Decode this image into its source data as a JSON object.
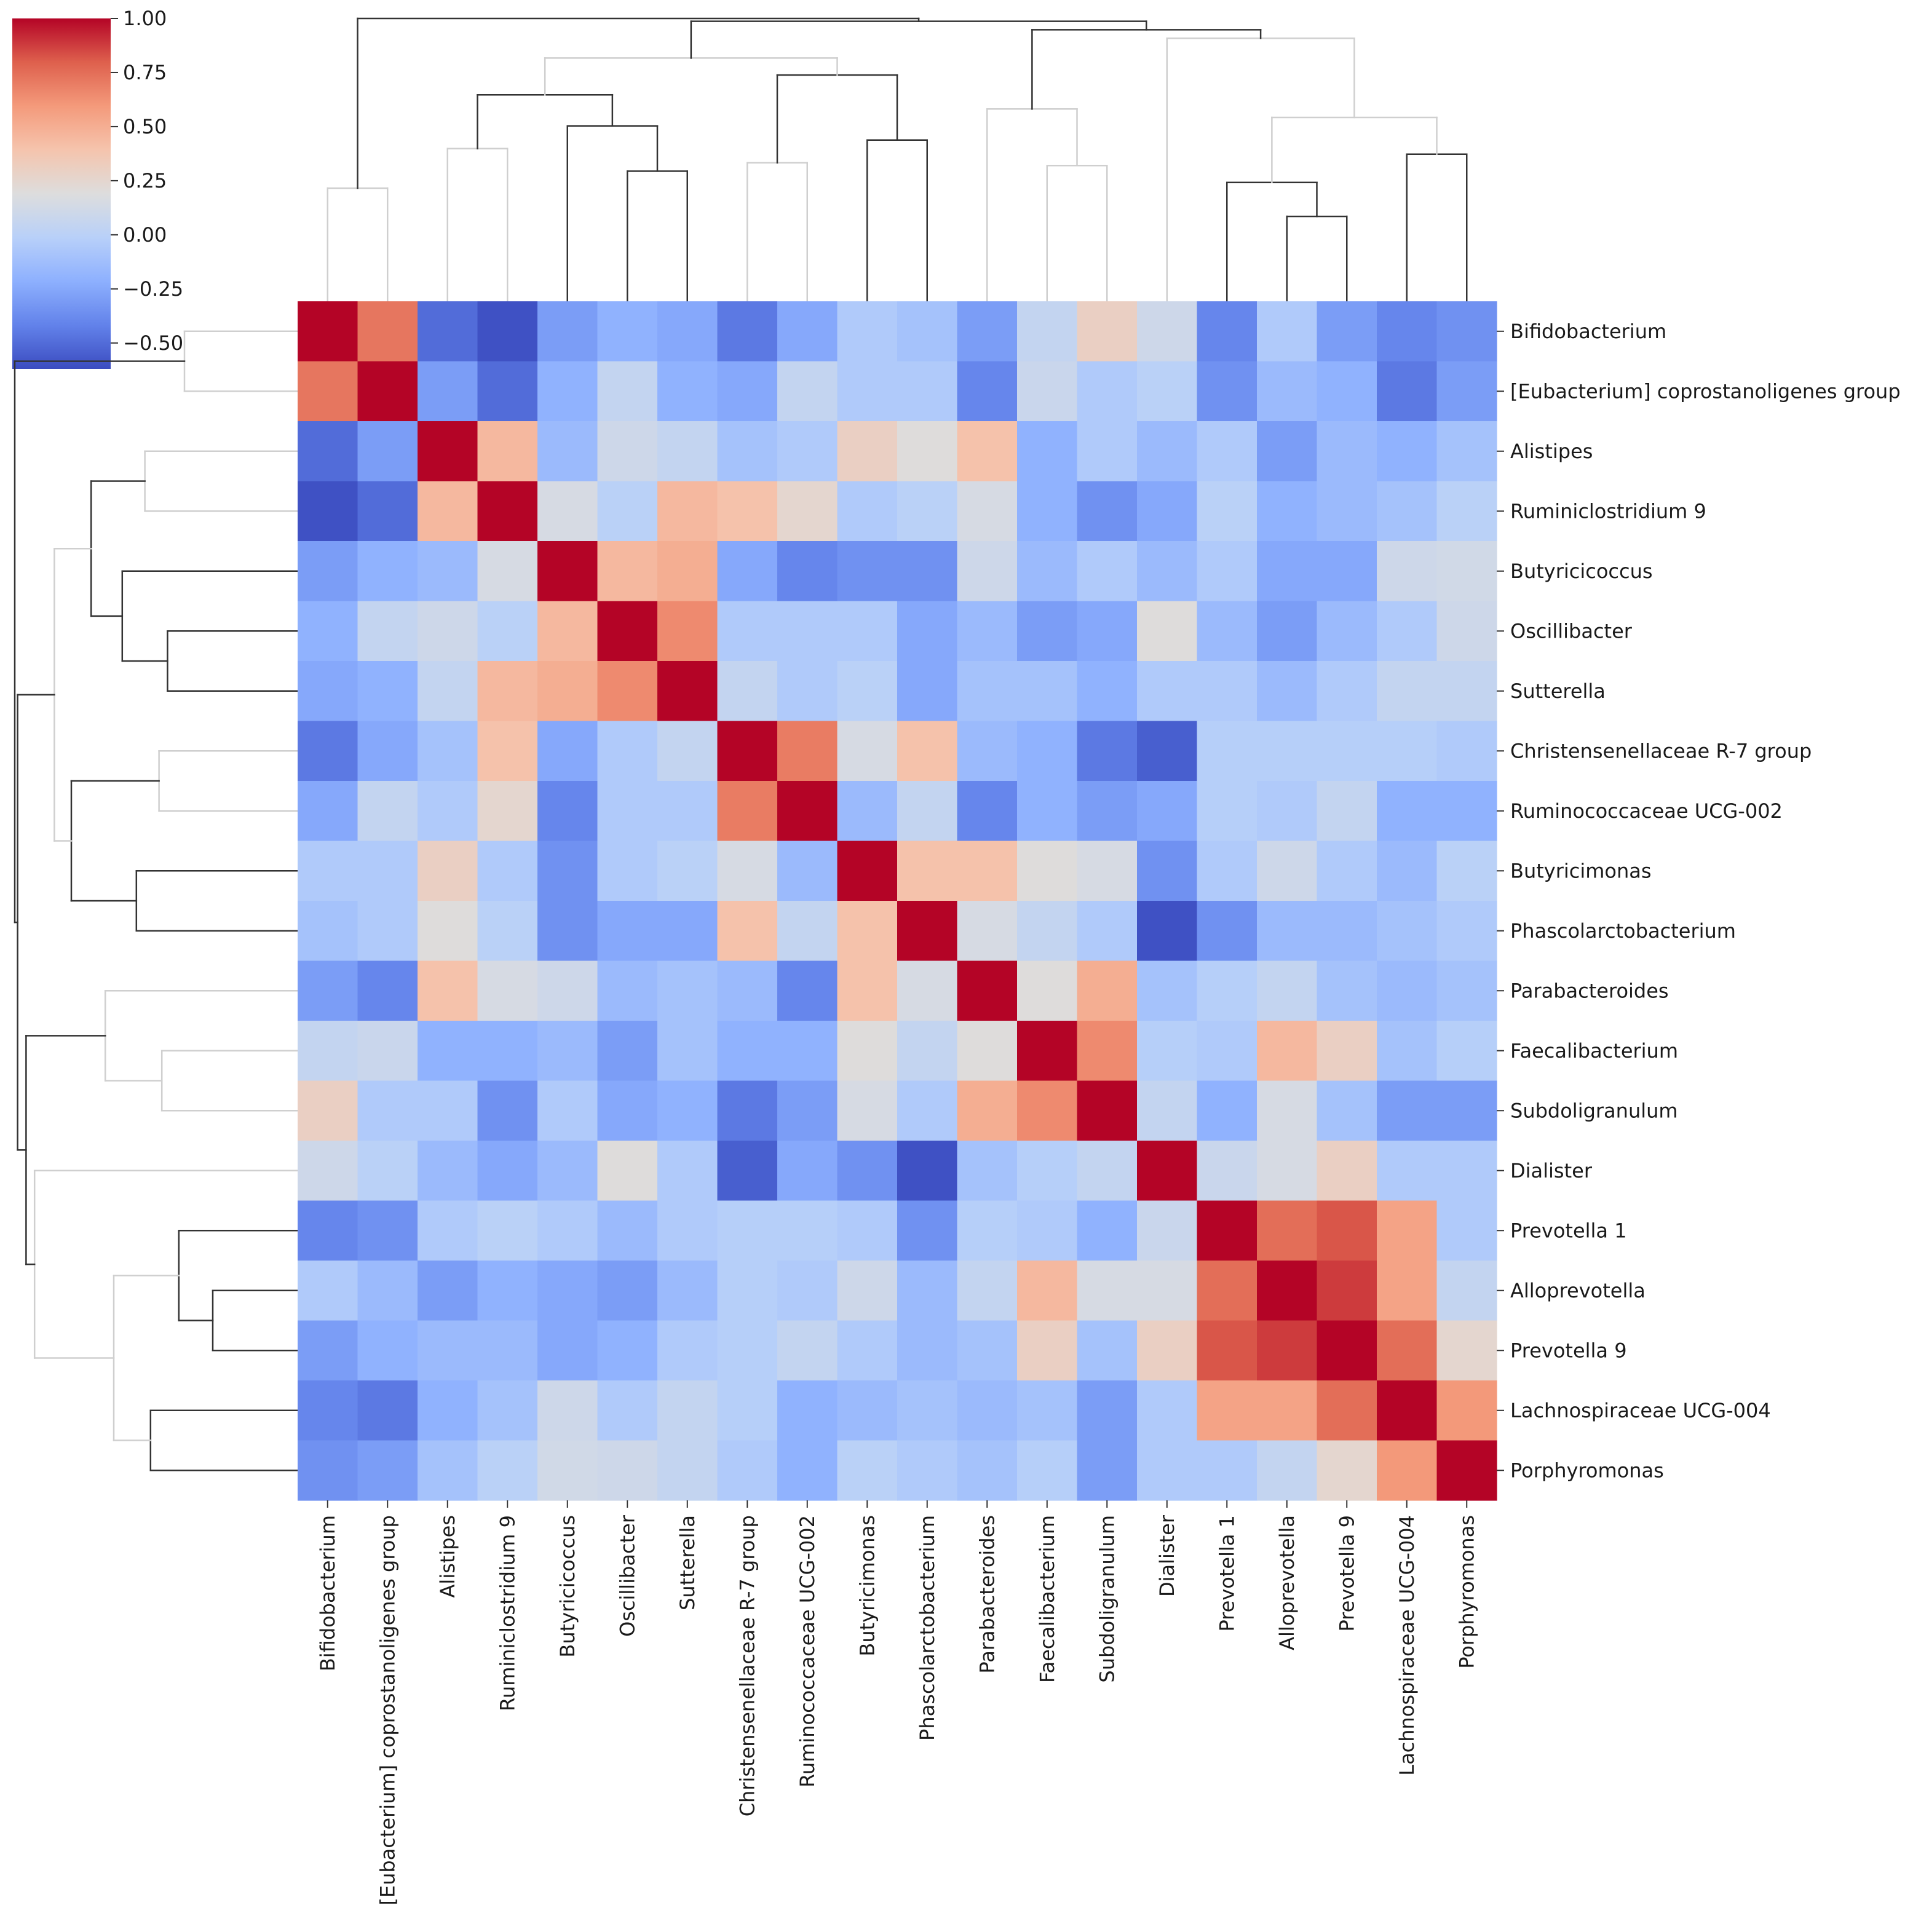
{
  "chart_data": {
    "type": "heatmap",
    "subtype": "clustermap",
    "title": "",
    "xlabel": "",
    "ylabel": "",
    "colormap": "coolwarm",
    "vmin": -0.62,
    "vmax": 1.0,
    "colors": {
      "low": "#3b4cc0",
      "mid": "#dddddd",
      "high": "#b40426"
    },
    "colorbar": {
      "ticks": [
        1.0,
        0.75,
        0.5,
        0.25,
        0.0,
        -0.25,
        -0.5
      ],
      "tick_labels": [
        "1.00",
        "0.75",
        "0.50",
        "0.25",
        "0.00",
        "−0.25",
        "−0.50"
      ]
    },
    "labels": [
      "Bifidobacterium",
      "[Eubacterium] coprostanoligenes group",
      "Alistipes",
      "Ruminiclostridium 9",
      "Butyricicoccus",
      "Oscillibacter",
      "Sutterella",
      "Christensenellaceae R-7 group",
      "Ruminococcaceae UCG-002",
      "Butyricimonas",
      "Phascolarctobacterium",
      "Parabacteroides",
      "Faecalibacterium",
      "Subdoligranulum",
      "Dialister",
      "Prevotella 1",
      "Alloprevotella",
      "Prevotella 9",
      "Lachnospiraceae UCG-004",
      "Porphyromonas"
    ],
    "matrix": [
      [
        1.0,
        0.72,
        -0.5,
        -0.6,
        -0.3,
        -0.2,
        -0.25,
        -0.45,
        -0.25,
        -0.05,
        -0.1,
        -0.3,
        0.05,
        0.3,
        0.1,
        -0.4,
        -0.05,
        -0.3,
        -0.4,
        -0.35
      ],
      [
        0.72,
        1.0,
        -0.3,
        -0.5,
        -0.2,
        0.05,
        -0.2,
        -0.25,
        0.05,
        -0.05,
        -0.05,
        -0.4,
        0.08,
        -0.05,
        0.0,
        -0.35,
        -0.15,
        -0.2,
        -0.45,
        -0.3
      ],
      [
        -0.5,
        -0.3,
        1.0,
        0.45,
        -0.15,
        0.1,
        0.05,
        -0.1,
        -0.05,
        0.3,
        0.2,
        0.4,
        -0.2,
        -0.05,
        -0.15,
        -0.05,
        -0.3,
        -0.15,
        -0.2,
        -0.1
      ],
      [
        -0.6,
        -0.5,
        0.45,
        1.0,
        0.15,
        0.0,
        0.45,
        0.4,
        0.25,
        -0.05,
        0.0,
        0.15,
        -0.2,
        -0.35,
        -0.25,
        0.0,
        -0.2,
        -0.15,
        -0.1,
        0.0
      ],
      [
        -0.3,
        -0.2,
        -0.15,
        0.15,
        1.0,
        0.45,
        0.5,
        -0.25,
        -0.4,
        -0.35,
        -0.35,
        0.1,
        -0.15,
        -0.05,
        -0.15,
        -0.05,
        -0.25,
        -0.25,
        0.1,
        0.12
      ],
      [
        -0.2,
        0.05,
        0.1,
        0.0,
        0.45,
        1.0,
        0.65,
        -0.05,
        -0.05,
        -0.05,
        -0.25,
        -0.15,
        -0.3,
        -0.25,
        0.2,
        -0.15,
        -0.3,
        -0.15,
        -0.05,
        0.1
      ],
      [
        -0.25,
        -0.2,
        0.05,
        0.45,
        0.5,
        0.65,
        1.0,
        0.05,
        -0.05,
        0.0,
        -0.25,
        -0.1,
        -0.1,
        -0.2,
        -0.05,
        -0.05,
        -0.15,
        -0.05,
        0.05,
        0.05
      ],
      [
        -0.45,
        -0.25,
        -0.1,
        0.4,
        -0.25,
        -0.05,
        0.05,
        1.0,
        0.7,
        0.15,
        0.4,
        -0.15,
        -0.2,
        -0.45,
        -0.55,
        -0.02,
        -0.02,
        -0.02,
        -0.02,
        -0.05
      ],
      [
        -0.25,
        0.05,
        -0.05,
        0.25,
        -0.4,
        -0.05,
        -0.05,
        0.7,
        1.0,
        -0.15,
        0.05,
        -0.4,
        -0.2,
        -0.3,
        -0.25,
        -0.02,
        -0.05,
        0.05,
        -0.2,
        -0.2
      ],
      [
        -0.05,
        -0.05,
        0.3,
        -0.05,
        -0.35,
        -0.05,
        0.0,
        0.15,
        -0.15,
        1.0,
        0.4,
        0.4,
        0.2,
        0.15,
        -0.35,
        -0.05,
        0.1,
        -0.05,
        -0.15,
        0.0
      ],
      [
        -0.1,
        -0.05,
        0.2,
        0.0,
        -0.35,
        -0.25,
        -0.25,
        0.4,
        0.05,
        0.4,
        1.0,
        0.15,
        0.05,
        -0.05,
        -0.6,
        -0.35,
        -0.15,
        -0.15,
        -0.1,
        -0.05
      ],
      [
        -0.3,
        -0.4,
        0.4,
        0.15,
        0.1,
        -0.15,
        -0.1,
        -0.15,
        -0.4,
        0.4,
        0.15,
        1.0,
        0.2,
        0.5,
        -0.1,
        -0.02,
        0.05,
        -0.1,
        -0.15,
        -0.1
      ],
      [
        0.05,
        0.08,
        -0.2,
        -0.2,
        -0.15,
        -0.3,
        -0.1,
        -0.2,
        -0.2,
        0.2,
        0.05,
        0.2,
        1.0,
        0.65,
        -0.02,
        -0.05,
        0.45,
        0.3,
        -0.1,
        -0.02
      ],
      [
        0.3,
        -0.05,
        -0.05,
        -0.35,
        -0.05,
        -0.25,
        -0.2,
        -0.45,
        -0.3,
        0.15,
        -0.05,
        0.5,
        0.65,
        1.0,
        0.05,
        -0.2,
        0.15,
        -0.1,
        -0.3,
        -0.3
      ],
      [
        0.1,
        0.0,
        -0.15,
        -0.25,
        -0.15,
        0.2,
        -0.05,
        -0.55,
        -0.25,
        -0.35,
        -0.6,
        -0.1,
        -0.02,
        0.05,
        1.0,
        0.08,
        0.15,
        0.3,
        -0.05,
        -0.05
      ],
      [
        -0.4,
        -0.35,
        -0.05,
        0.0,
        -0.05,
        -0.15,
        -0.05,
        -0.02,
        -0.02,
        -0.05,
        -0.35,
        -0.02,
        -0.05,
        -0.2,
        0.08,
        1.0,
        0.75,
        0.82,
        0.55,
        -0.05
      ],
      [
        -0.05,
        -0.15,
        -0.3,
        -0.2,
        -0.25,
        -0.3,
        -0.15,
        -0.02,
        -0.05,
        0.1,
        -0.15,
        0.05,
        0.45,
        0.15,
        0.15,
        0.75,
        1.0,
        0.88,
        0.55,
        0.05
      ],
      [
        -0.3,
        -0.2,
        -0.15,
        -0.15,
        -0.25,
        -0.2,
        -0.05,
        -0.02,
        0.05,
        -0.05,
        -0.15,
        -0.1,
        0.3,
        -0.1,
        0.3,
        0.82,
        0.88,
        1.0,
        0.75,
        0.25
      ],
      [
        -0.4,
        -0.45,
        -0.2,
        -0.1,
        0.1,
        -0.05,
        0.05,
        -0.02,
        -0.2,
        -0.15,
        -0.1,
        -0.15,
        -0.1,
        -0.3,
        -0.05,
        0.55,
        0.55,
        0.75,
        1.0,
        0.6
      ],
      [
        -0.35,
        -0.3,
        -0.1,
        0.0,
        0.12,
        0.1,
        0.05,
        -0.05,
        -0.2,
        0.0,
        -0.05,
        -0.1,
        -0.02,
        -0.3,
        -0.05,
        -0.05,
        0.05,
        0.25,
        0.6,
        1.0
      ]
    ]
  }
}
